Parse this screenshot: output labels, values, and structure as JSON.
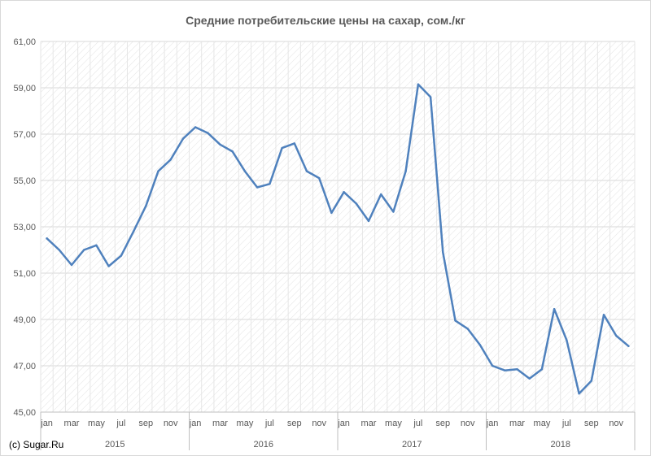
{
  "chart_data": {
    "type": "line",
    "title": "Средние потребительские цены на сахар, сом./кг",
    "xlabel": "",
    "ylabel": "",
    "ylim": [
      45,
      61
    ],
    "yticks": [
      "45,00",
      "47,00",
      "49,00",
      "51,00",
      "53,00",
      "55,00",
      "57,00",
      "59,00",
      "61,00"
    ],
    "month_labels": [
      "jan",
      "mar",
      "may",
      "jul",
      "sep",
      "nov"
    ],
    "years": [
      "2015",
      "2016",
      "2017",
      "2018"
    ],
    "x": [
      "2015-01",
      "2015-02",
      "2015-03",
      "2015-04",
      "2015-05",
      "2015-06",
      "2015-07",
      "2015-08",
      "2015-09",
      "2015-10",
      "2015-11",
      "2015-12",
      "2016-01",
      "2016-02",
      "2016-03",
      "2016-04",
      "2016-05",
      "2016-06",
      "2016-07",
      "2016-08",
      "2016-09",
      "2016-10",
      "2016-11",
      "2016-12",
      "2017-01",
      "2017-02",
      "2017-03",
      "2017-04",
      "2017-05",
      "2017-06",
      "2017-07",
      "2017-08",
      "2017-09",
      "2017-10",
      "2017-11",
      "2017-12",
      "2018-01",
      "2018-02",
      "2018-03",
      "2018-04",
      "2018-05",
      "2018-06",
      "2018-07",
      "2018-08",
      "2018-09",
      "2018-10",
      "2018-11",
      "2018-12"
    ],
    "series": [
      {
        "values": [
          52.5,
          52.0,
          51.35,
          52.0,
          52.2,
          51.3,
          51.75,
          52.8,
          53.9,
          55.4,
          55.9,
          56.8,
          57.3,
          57.05,
          56.55,
          56.25,
          55.4,
          54.7,
          54.85,
          56.4,
          56.6,
          55.4,
          55.1,
          53.6,
          54.5,
          54.0,
          53.25,
          54.4,
          53.65,
          55.4,
          59.15,
          58.6,
          51.9,
          48.95,
          48.6,
          47.9,
          47.0,
          46.8,
          46.85,
          46.45,
          46.85,
          49.45,
          48.1,
          45.8,
          46.35,
          49.2,
          48.3,
          47.85
        ],
        "color": "#4f81bd"
      }
    ],
    "grid": true,
    "legend": "none"
  },
  "footer": {
    "credit": "(c) Sugar.Ru"
  }
}
